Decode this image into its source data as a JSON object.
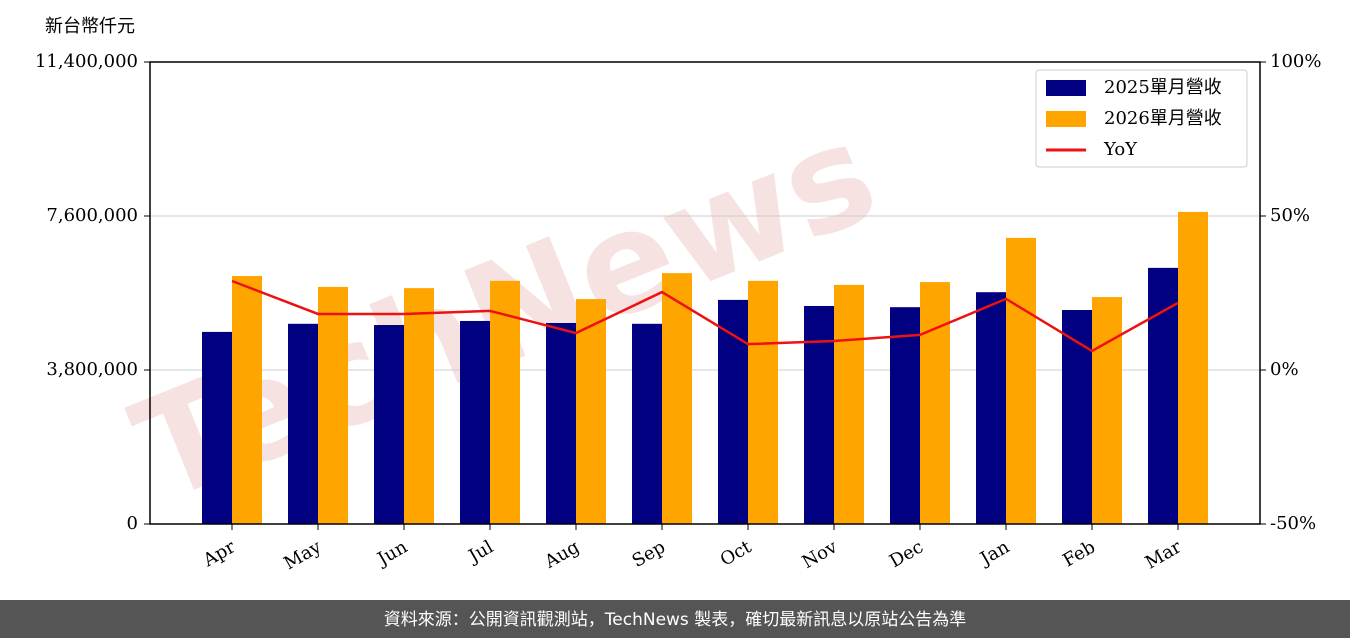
{
  "chart_data": {
    "type": "bar",
    "y_label": "新台幣仟元",
    "watermark": "TechNews",
    "source": "資料來源：公開資訊觀測站，TechNews 製表，確切最新訊息以原站公告為準",
    "categories": [
      "Apr",
      "May",
      "Jun",
      "Jul",
      "Aug",
      "Sep",
      "Oct",
      "Nov",
      "Dec",
      "Jan",
      "Feb",
      "Mar"
    ],
    "series": [
      {
        "name": "2025單月營收",
        "color": "#000080",
        "type": "bar",
        "values": [
          4740000,
          4940000,
          4910000,
          5010000,
          4960000,
          4940000,
          5530000,
          5380000,
          5350000,
          5720000,
          5280000,
          6320000
        ]
      },
      {
        "name": "2026單月營收",
        "color": "#ffa500",
        "type": "bar",
        "values": [
          6120000,
          5850000,
          5820000,
          6000000,
          5550000,
          6190000,
          6000000,
          5900000,
          5970000,
          7060000,
          5600000,
          7700000
        ]
      },
      {
        "name": "YoY",
        "color": "#ee1111",
        "type": "line",
        "axis": "y2",
        "values": [
          28.9,
          18.2,
          18.2,
          19.2,
          12.0,
          25.3,
          8.4,
          9.4,
          11.4,
          23.1,
          6.2,
          21.8
        ]
      }
    ],
    "ylim": [
      0,
      11400000
    ],
    "yticks": [
      0,
      {
        "value": 3800000,
        "label": "3,800,000"
      },
      {
        "value": 7600000,
        "label": "7,600,000"
      },
      {
        "value": 11400000,
        "label": "11,400,000"
      }
    ],
    "y2lim": [
      -50,
      100
    ],
    "y2ticks": [
      {
        "value": -50,
        "label": "-50%"
      },
      {
        "value": 0,
        "label": "0%"
      },
      {
        "value": 50,
        "label": "50%"
      },
      {
        "value": 100,
        "label": "100%"
      }
    ],
    "grid": true,
    "legend": "upper right"
  }
}
